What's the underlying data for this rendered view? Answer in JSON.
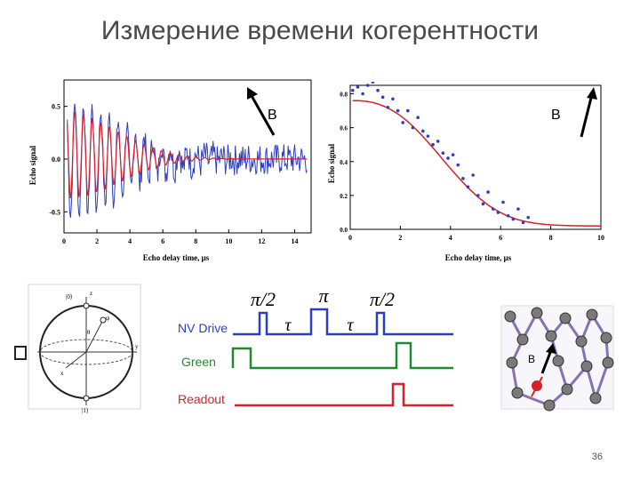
{
  "title": "Измерение времени когерентности",
  "page_number": "36",
  "colors": {
    "red": "#d8202a",
    "blue": "#2d3fbf",
    "green": "#1f8a2e",
    "dark": "#000000"
  },
  "field_label": "B",
  "chart_data": [
    {
      "type": "line",
      "xlabel": "Echo delay time, μs",
      "ylabel": "Echo signal",
      "xlim": [
        0,
        15
      ],
      "ylim": [
        -0.7,
        0.75
      ],
      "xticks": [
        0,
        2,
        4,
        6,
        8,
        10,
        12,
        14
      ],
      "yticks": [
        -0.5,
        0.0,
        0.5
      ],
      "series": [
        {
          "color": "#2d3fbf",
          "description_values": "noisy oscillating echo data"
        },
        {
          "color": "#d8202a",
          "description_values": "fitted decaying oscillation"
        }
      ]
    },
    {
      "type": "scatter",
      "xlabel": "Echo delay time, μs",
      "ylabel": "Echo signal",
      "xlim": [
        0,
        10
      ],
      "ylim": [
        0,
        0.85
      ],
      "xticks": [
        0,
        2,
        4,
        6,
        8,
        10
      ],
      "yticks": [
        0.0,
        0.2,
        0.4,
        0.6,
        0.8
      ],
      "points": [
        [
          0.1,
          0.82
        ],
        [
          0.3,
          0.84
        ],
        [
          0.5,
          0.8
        ],
        [
          0.7,
          0.85
        ],
        [
          0.9,
          0.87
        ],
        [
          1.1,
          0.82
        ],
        [
          1.3,
          0.78
        ],
        [
          1.5,
          0.72
        ],
        [
          1.7,
          0.77
        ],
        [
          1.9,
          0.7
        ],
        [
          2.1,
          0.63
        ],
        [
          2.3,
          0.7
        ],
        [
          2.5,
          0.6
        ],
        [
          2.7,
          0.66
        ],
        [
          2.9,
          0.58
        ],
        [
          3.1,
          0.55
        ],
        [
          3.3,
          0.5
        ],
        [
          3.5,
          0.52
        ],
        [
          3.7,
          0.45
        ],
        [
          3.9,
          0.42
        ],
        [
          4.1,
          0.44
        ],
        [
          4.3,
          0.38
        ],
        [
          4.5,
          0.3
        ],
        [
          4.7,
          0.25
        ],
        [
          4.9,
          0.32
        ],
        [
          5.1,
          0.2
        ],
        [
          5.3,
          0.15
        ],
        [
          5.5,
          0.22
        ],
        [
          5.7,
          0.12
        ],
        [
          5.9,
          0.1
        ],
        [
          6.1,
          0.16
        ],
        [
          6.3,
          0.08
        ],
        [
          6.5,
          0.06
        ],
        [
          6.7,
          0.12
        ],
        [
          6.9,
          0.04
        ],
        [
          7.1,
          0.07
        ]
      ],
      "fit": "gaussian decay"
    }
  ],
  "pulse_sequence": {
    "top_labels": [
      "π/2",
      "π",
      "π/2"
    ],
    "tau_label": "τ",
    "rows": [
      {
        "label": "NV Drive",
        "color": "#2d3fbf"
      },
      {
        "label": "Green",
        "color": "#1f8a2e"
      },
      {
        "label": "Readout",
        "color": "#d8202a"
      }
    ]
  },
  "bloch_sphere": {
    "labels": [
      "|0⟩",
      "|1⟩",
      "ψ",
      "θ",
      "z",
      "y",
      "x"
    ]
  }
}
